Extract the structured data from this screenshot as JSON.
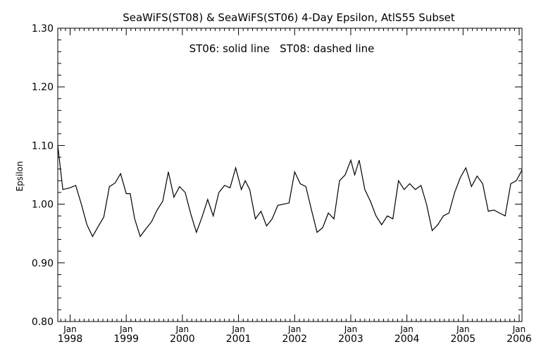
{
  "chart_data": {
    "type": "line",
    "title": "SeaWiFS(ST08) & SeaWiFS(ST06) 4-Day Epsilon, AtlS55 Subset",
    "annotation": "ST06: solid line   ST08: dashed line",
    "xlabel": "",
    "ylabel": "Epsilon",
    "ylim": [
      0.8,
      1.3
    ],
    "yticks": [
      {
        "value": 0.8,
        "label": "0.80"
      },
      {
        "value": 0.9,
        "label": "0.90"
      },
      {
        "value": 1.0,
        "label": "1.00"
      },
      {
        "value": 1.1,
        "label": "1.10"
      },
      {
        "value": 1.2,
        "label": "1.20"
      },
      {
        "value": 1.3,
        "label": "1.30"
      }
    ],
    "xlim": [
      1997.78,
      2006.05
    ],
    "xticks": [
      {
        "value": 1998,
        "month": "Jan",
        "year": "1998"
      },
      {
        "value": 1999,
        "month": "Jan",
        "year": "1999"
      },
      {
        "value": 2000,
        "month": "Jan",
        "year": "2000"
      },
      {
        "value": 2001,
        "month": "Jan",
        "year": "2001"
      },
      {
        "value": 2002,
        "month": "Jan",
        "year": "2002"
      },
      {
        "value": 2003,
        "month": "Jan",
        "year": "2003"
      },
      {
        "value": 2004,
        "month": "Jan",
        "year": "2004"
      },
      {
        "value": 2005,
        "month": "Jan",
        "year": "2005"
      },
      {
        "value": 2006,
        "month": "Jan",
        "year": "2006"
      }
    ],
    "grid": false,
    "series": [
      {
        "name": "ST06",
        "style": "solid",
        "color": "#000000",
        "x": [
          1997.78,
          1997.87,
          1998.0,
          1998.1,
          1998.2,
          1998.3,
          1998.4,
          1998.5,
          1998.6,
          1998.7,
          1998.8,
          1998.9,
          1999.0,
          1999.07,
          1999.15,
          1999.25,
          1999.35,
          1999.45,
          1999.55,
          1999.65,
          1999.75,
          1999.85,
          1999.95,
          2000.05,
          2000.15,
          2000.25,
          2000.35,
          2000.45,
          2000.55,
          2000.65,
          2000.75,
          2000.85,
          2000.95,
          2001.05,
          2001.12,
          2001.2,
          2001.3,
          2001.4,
          2001.5,
          2001.6,
          2001.7,
          2001.8,
          2001.9,
          2002.0,
          2002.1,
          2002.2,
          2002.3,
          2002.4,
          2002.5,
          2002.6,
          2002.7,
          2002.8,
          2002.9,
          2003.0,
          2003.07,
          2003.15,
          2003.25,
          2003.35,
          2003.45,
          2003.55,
          2003.65,
          2003.75,
          2003.85,
          2003.95,
          2004.05,
          2004.15,
          2004.25,
          2004.35,
          2004.45,
          2004.55,
          2004.65,
          2004.75,
          2004.85,
          2004.95,
          2005.05,
          2005.15,
          2005.25,
          2005.35,
          2005.45,
          2005.55,
          2005.65,
          2005.75,
          2005.85,
          2005.95,
          2006.05
        ],
        "values": [
          1.1,
          1.025,
          1.028,
          1.032,
          1.0,
          0.965,
          0.945,
          0.962,
          0.978,
          1.03,
          1.036,
          1.052,
          1.018,
          1.018,
          0.975,
          0.945,
          0.958,
          0.97,
          0.99,
          1.005,
          1.055,
          1.012,
          1.03,
          1.02,
          0.983,
          0.952,
          0.978,
          1.008,
          0.98,
          1.02,
          1.032,
          1.028,
          1.062,
          1.025,
          1.04,
          1.025,
          0.975,
          0.988,
          0.963,
          0.975,
          0.998,
          1.0,
          1.002,
          1.055,
          1.035,
          1.03,
          0.99,
          0.952,
          0.96,
          0.985,
          0.975,
          1.04,
          1.05,
          1.075,
          1.05,
          1.075,
          1.025,
          1.005,
          0.98,
          0.965,
          0.98,
          0.975,
          1.04,
          1.025,
          1.035,
          1.025,
          1.032,
          1.0,
          0.955,
          0.965,
          0.98,
          0.985,
          1.02,
          1.045,
          1.062,
          1.03,
          1.048,
          1.035,
          0.988,
          0.99,
          0.985,
          0.98,
          1.035,
          1.04,
          1.058
        ]
      }
    ]
  }
}
